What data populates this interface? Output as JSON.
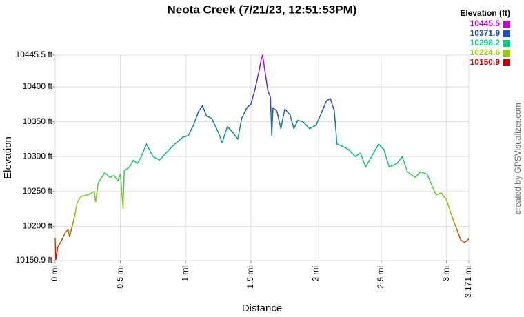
{
  "chart_data": {
    "type": "line",
    "title": "Neota Creek (7/21/23, 12:51:53PM)",
    "x_label": "Distance",
    "y_label": "Elevation",
    "credit": "created by GPSVisualizer.com",
    "legend": {
      "title": "Elevation (ft)",
      "entries": [
        {
          "value": 10445.5,
          "color": "#cc00cc"
        },
        {
          "value": 10371.9,
          "color": "#1f4fcc"
        },
        {
          "value": 10298.2,
          "color": "#00cc77"
        },
        {
          "value": 10224.6,
          "color": "#99cc00"
        },
        {
          "value": 10150.9,
          "color": "#cc0000"
        }
      ]
    },
    "grid": true,
    "xlim": [
      0,
      3.171
    ],
    "ylim": [
      10150.9,
      10445.5
    ],
    "xticks": [
      {
        "value": 0,
        "label": "0 mi"
      },
      {
        "value": 0.5,
        "label": "0.5 mi"
      },
      {
        "value": 1,
        "label": "1 mi"
      },
      {
        "value": 1.5,
        "label": "1.5 mi"
      },
      {
        "value": 2,
        "label": "2 mi"
      },
      {
        "value": 2.5,
        "label": "2.5 mi"
      },
      {
        "value": 3,
        "label": "3 mi"
      },
      {
        "value": 3.171,
        "label": "3.171 mi"
      }
    ],
    "yticks": [
      {
        "value": 10150.9,
        "label": "10150.9 ft"
      },
      {
        "value": 10200,
        "label": "10200 ft"
      },
      {
        "value": 10250,
        "label": "10250 ft"
      },
      {
        "value": 10300,
        "label": "10300 ft"
      },
      {
        "value": 10350,
        "label": "10350 ft"
      },
      {
        "value": 10400,
        "label": "10400 ft"
      },
      {
        "value": 10445.5,
        "label": "10445.5 ft"
      }
    ],
    "x": [
      0,
      0.005,
      0.02,
      0.05,
      0.08,
      0.1,
      0.11,
      0.13,
      0.15,
      0.17,
      0.2,
      0.25,
      0.3,
      0.31,
      0.33,
      0.38,
      0.42,
      0.45,
      0.48,
      0.5,
      0.52,
      0.53,
      0.57,
      0.6,
      0.63,
      0.66,
      0.7,
      0.75,
      0.8,
      0.85,
      0.9,
      0.98,
      1.02,
      1.06,
      1.1,
      1.13,
      1.16,
      1.2,
      1.25,
      1.28,
      1.32,
      1.36,
      1.4,
      1.43,
      1.47,
      1.5,
      1.53,
      1.56,
      1.58,
      1.59,
      1.61,
      1.63,
      1.65,
      1.66,
      1.67,
      1.7,
      1.73,
      1.76,
      1.8,
      1.83,
      1.86,
      1.9,
      1.95,
      2.0,
      2.04,
      2.08,
      2.11,
      2.14,
      2.16,
      2.2,
      2.25,
      2.3,
      2.34,
      2.38,
      2.44,
      2.48,
      2.52,
      2.56,
      2.62,
      2.66,
      2.7,
      2.76,
      2.8,
      2.85,
      2.88,
      2.92,
      2.96,
      3.0,
      3.04,
      3.08,
      3.11,
      3.14,
      3.171
    ],
    "series": [
      {
        "values": [
          10183,
          10152,
          10170,
          10180,
          10192,
          10195,
          10185,
          10200,
          10215,
          10235,
          10243,
          10245,
          10250,
          10235,
          10262,
          10277,
          10270,
          10273,
          10265,
          10275,
          10225,
          10280,
          10285,
          10295,
          10290,
          10300,
          10318,
          10300,
          10295,
          10305,
          10315,
          10328,
          10330,
          10345,
          10365,
          10373,
          10358,
          10355,
          10335,
          10320,
          10343,
          10335,
          10325,
          10355,
          10370,
          10375,
          10395,
          10420,
          10440,
          10445.5,
          10420,
          10395,
          10385,
          10330,
          10370,
          10365,
          10340,
          10368,
          10360,
          10340,
          10352,
          10350,
          10340,
          10345,
          10362,
          10380,
          10383,
          10365,
          10318,
          10315,
          10310,
          10300,
          10305,
          10285,
          10305,
          10318,
          10310,
          10285,
          10290,
          10300,
          10278,
          10270,
          10278,
          10275,
          10262,
          10245,
          10248,
          10238,
          10215,
          10195,
          10180,
          10177,
          10182
        ]
      }
    ]
  }
}
